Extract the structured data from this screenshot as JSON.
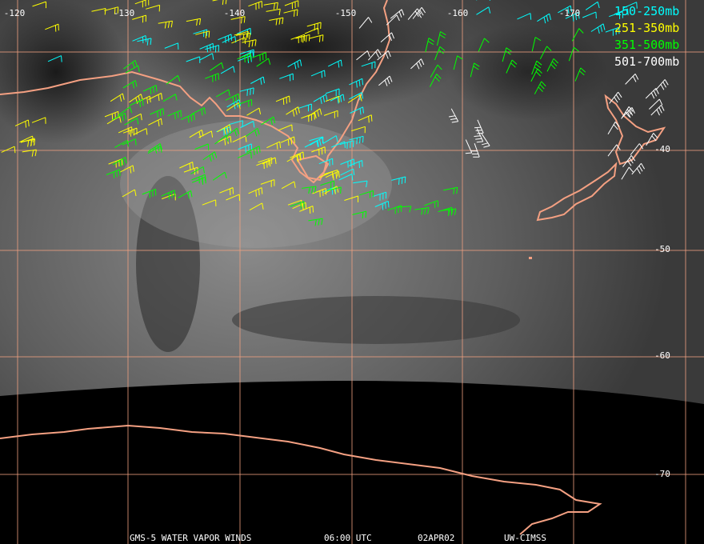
{
  "map": {
    "longitude_labels": [
      "-120",
      "-130",
      "-140",
      "-150",
      "-160",
      "-170"
    ],
    "latitude_labels": [
      "-40",
      "-50",
      "-60",
      "-70"
    ],
    "legend": [
      {
        "label": "150-250mb",
        "color": "#00ffff"
      },
      {
        "label": "251-350mb",
        "color": "#ffff00"
      },
      {
        "label": "351-500mb",
        "color": "#00ff00"
      },
      {
        "label": "501-700mb",
        "color": "#ffffff"
      }
    ],
    "footer": [
      "GMS-5 WATER VAPOR WINDS",
      "06:00 UTC",
      "02APR02",
      "UW-CIMSS"
    ]
  }
}
